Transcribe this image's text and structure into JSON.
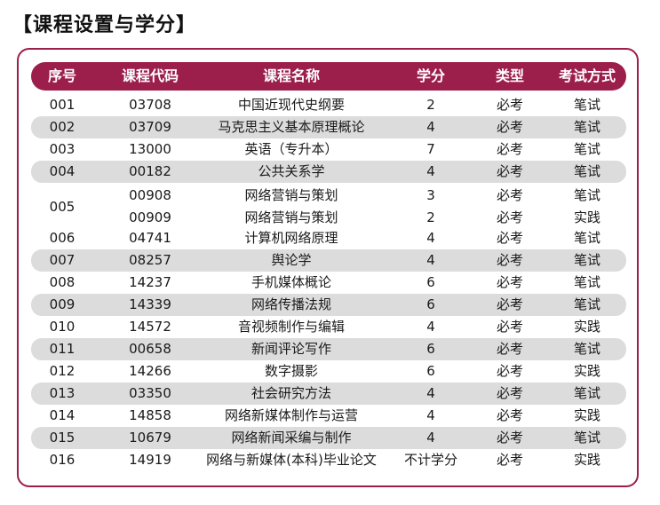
{
  "title": "【课程设置与学分】",
  "headers": [
    "序号",
    "课程代码",
    "课程名称",
    "学分",
    "类型",
    "考试方式"
  ],
  "rows": [
    {
      "no": "001",
      "code": "03708",
      "name": "中国近现代史纲要",
      "credit": "2",
      "type": "必考",
      "exam": "笔试"
    },
    {
      "no": "002",
      "code": "03709",
      "name": "马克思主义基本原理概论",
      "credit": "4",
      "type": "必考",
      "exam": "笔试"
    },
    {
      "no": "003",
      "code": "13000",
      "name": "英语（专升本）",
      "credit": "7",
      "type": "必考",
      "exam": "笔试"
    },
    {
      "no": "004",
      "code": "00182",
      "name": "公共关系学",
      "credit": "4",
      "type": "必考",
      "exam": "笔试"
    },
    {
      "no": "006",
      "code": "04741",
      "name": "计算机网络原理",
      "credit": "4",
      "type": "必考",
      "exam": "笔试"
    },
    {
      "no": "007",
      "code": "08257",
      "name": "舆论学",
      "credit": "4",
      "type": "必考",
      "exam": "笔试"
    },
    {
      "no": "008",
      "code": "14237",
      "name": "手机媒体概论",
      "credit": "6",
      "type": "必考",
      "exam": "笔试"
    },
    {
      "no": "009",
      "code": "14339",
      "name": "网络传播法规",
      "credit": "6",
      "type": "必考",
      "exam": "笔试"
    },
    {
      "no": "010",
      "code": "14572",
      "name": "音视频制作与编辑",
      "credit": "4",
      "type": "必考",
      "exam": "实践"
    },
    {
      "no": "011",
      "code": "00658",
      "name": "新闻评论写作",
      "credit": "6",
      "type": "必考",
      "exam": "笔试"
    },
    {
      "no": "012",
      "code": "14266",
      "name": "数字摄影",
      "credit": "6",
      "type": "必考",
      "exam": "实践"
    },
    {
      "no": "013",
      "code": "03350",
      "name": "社会研究方法",
      "credit": "4",
      "type": "必考",
      "exam": "笔试"
    },
    {
      "no": "014",
      "code": "14858",
      "name": "网络新媒体制作与运营",
      "credit": "4",
      "type": "必考",
      "exam": "实践"
    },
    {
      "no": "015",
      "code": "10679",
      "name": "网络新闻采编与制作",
      "credit": "4",
      "type": "必考",
      "exam": "笔试"
    },
    {
      "no": "016",
      "code": "14919",
      "name": "网络与新媒体(本科)毕业论文",
      "credit": "不计学分",
      "type": "必考",
      "exam": "实践"
    }
  ],
  "merged": {
    "no": "005",
    "subrows": [
      {
        "code": "00908",
        "name": "网络营销与策划",
        "credit": "3",
        "type": "必考",
        "exam": "笔试"
      },
      {
        "code": "00909",
        "name": "网络营销与策划",
        "credit": "2",
        "type": "必考",
        "exam": "实践"
      }
    ]
  }
}
